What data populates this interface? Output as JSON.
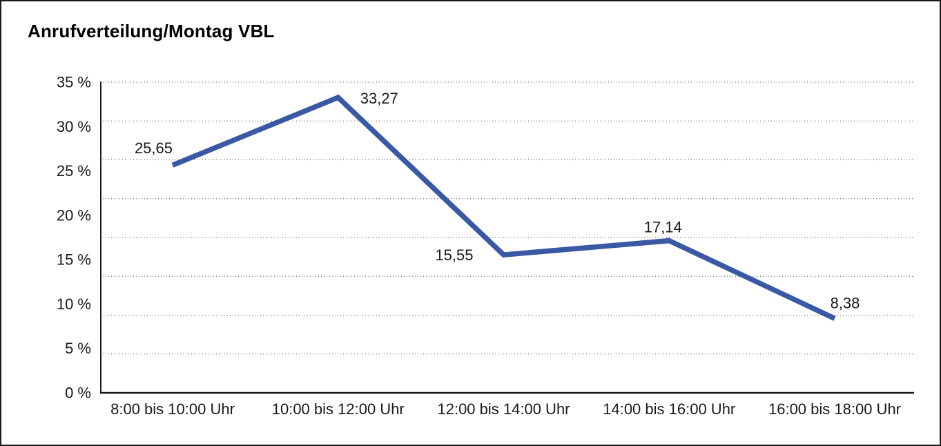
{
  "chart_data": {
    "type": "line",
    "title": "Anrufverteilung/Montag VBL",
    "categories": [
      "8:00 bis 10:00 Uhr",
      "10:00 bis 12:00 Uhr",
      "12:00 bis 14:00 Uhr",
      "14:00 bis 16:00 Uhr",
      "16:00 bis 18:00 Uhr"
    ],
    "values": [
      25.65,
      33.27,
      15.55,
      17.14,
      8.38
    ],
    "point_labels": [
      "25,65",
      "33,27",
      "15,55",
      "17,14",
      "8,38"
    ],
    "y_ticks": [
      {
        "value": 0,
        "label": "0 %"
      },
      {
        "value": 5,
        "label": "5 %"
      },
      {
        "value": 10,
        "label": "10 %"
      },
      {
        "value": 15,
        "label": "15 %"
      },
      {
        "value": 20,
        "label": "20 %"
      },
      {
        "value": 25,
        "label": "25 %"
      },
      {
        "value": 30,
        "label": "30 %"
      },
      {
        "value": 35,
        "label": "35 %"
      }
    ],
    "ylim": [
      0,
      35
    ],
    "xlabel": "",
    "ylabel": "",
    "legend": "none",
    "grid": "horizontal-dotted",
    "grid_intervals": 8,
    "line_color": "#3A59A5",
    "axis_color": "#1a1a1a",
    "gridline_color": "#505050",
    "text_color": "#1a1a1a",
    "background_color": "#ffffff"
  }
}
